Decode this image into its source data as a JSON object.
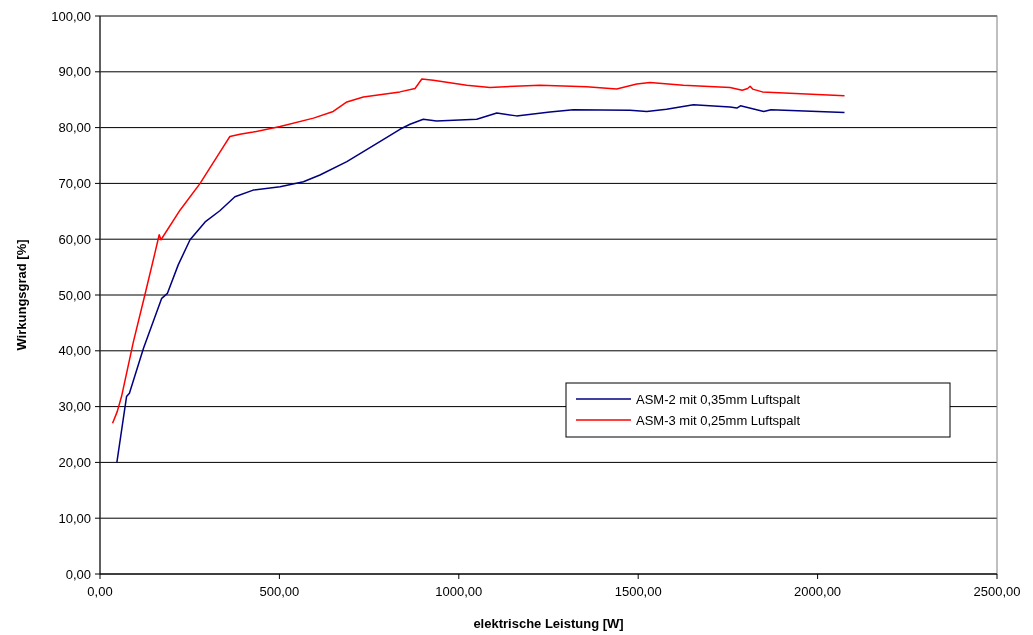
{
  "chart_data": {
    "type": "line",
    "xlabel": "elektrische Leistung [W]",
    "ylabel": "Wirkungsgrad [%]",
    "xlim": [
      0,
      2500
    ],
    "ylim": [
      0,
      100
    ],
    "xticks": [
      {
        "value": 0,
        "label": "0,00"
      },
      {
        "value": 500,
        "label": "500,00"
      },
      {
        "value": 1000,
        "label": "1000,00"
      },
      {
        "value": 1500,
        "label": "1500,00"
      },
      {
        "value": 2000,
        "label": "2000,00"
      },
      {
        "value": 2500,
        "label": "2500,00"
      }
    ],
    "yticks": [
      {
        "value": 0,
        "label": "0,00"
      },
      {
        "value": 10,
        "label": "10,00"
      },
      {
        "value": 20,
        "label": "20,00"
      },
      {
        "value": 30,
        "label": "30,00"
      },
      {
        "value": 40,
        "label": "40,00"
      },
      {
        "value": 50,
        "label": "50,00"
      },
      {
        "value": 60,
        "label": "60,00"
      },
      {
        "value": 70,
        "label": "70,00"
      },
      {
        "value": 80,
        "label": "80,00"
      },
      {
        "value": 90,
        "label": "90,00"
      },
      {
        "value": 100,
        "label": "100,00"
      }
    ],
    "grid": "y",
    "legend": "right",
    "line_style": "solid",
    "series": [
      {
        "name": "ASM-2 mit 0,35mm Luftspalt",
        "color": "#000080",
        "x": [
          47,
          74,
          82,
          121,
          172,
          188,
          218,
          251,
          293,
          334,
          376,
          427,
          502,
          567,
          613,
          688,
          780,
          836,
          864,
          901,
          938,
          1050,
          1106,
          1161,
          1254,
          1319,
          1477,
          1524,
          1579,
          1654,
          1756,
          1775,
          1785,
          1850,
          1870,
          2075
        ],
        "values": [
          20,
          31.8,
          32.4,
          40.4,
          49.4,
          50.3,
          55.4,
          59.9,
          63.1,
          65.1,
          67.6,
          68.8,
          69.4,
          70.3,
          71.5,
          73.9,
          77.5,
          79.7,
          80.6,
          81.5,
          81.2,
          81.5,
          82.6,
          82.1,
          82.8,
          83.2,
          83.1,
          82.9,
          83.3,
          84.1,
          83.7,
          83.5,
          83.9,
          82.9,
          83.2,
          82.7
        ]
      },
      {
        "name": "ASM-3 mit 0,25mm Luftspalt",
        "color": "#ff0000",
        "x": [
          35,
          48,
          60,
          93,
          125,
          153,
          165,
          170,
          223,
          279,
          344,
          362,
          390,
          427,
          502,
          595,
          650,
          688,
          734,
          836,
          878,
          897,
          929,
          1022,
          1087,
          1226,
          1356,
          1440,
          1496,
          1533,
          1626,
          1756,
          1790,
          1805,
          1812,
          1819,
          1846,
          2075
        ],
        "values": [
          27,
          29.1,
          31.8,
          41.6,
          50,
          57.5,
          60.8,
          59.9,
          65.2,
          70,
          76.6,
          78.4,
          78.8,
          79.2,
          80.2,
          81.7,
          82.9,
          84.6,
          85.5,
          86.4,
          87,
          88.7,
          88.5,
          87.6,
          87.2,
          87.6,
          87.3,
          86.9,
          87.8,
          88.1,
          87.6,
          87.2,
          86.7,
          87,
          87.4,
          86.9,
          86.4,
          85.7
        ]
      }
    ]
  }
}
